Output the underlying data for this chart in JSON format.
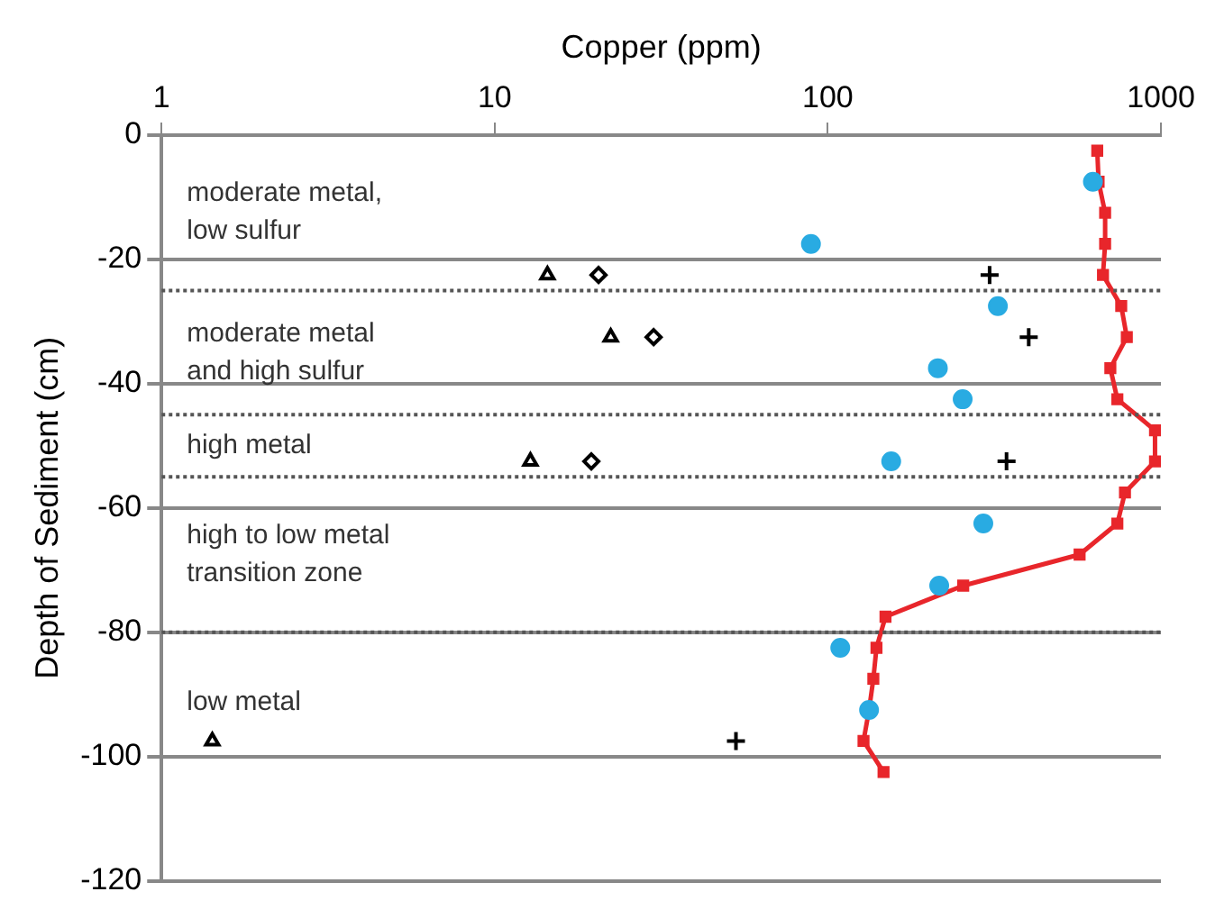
{
  "chart_data": {
    "type": "scatter",
    "xlabel": "Copper (ppm)",
    "ylabel": "Depth of Sediment (cm)",
    "log": "x",
    "xlim": [
      1,
      1000
    ],
    "xticks": [
      1,
      10,
      100,
      1000
    ],
    "ylim": [
      -120,
      0
    ],
    "yticks": [
      -120,
      -100,
      -80,
      -60,
      -40,
      -20,
      0
    ],
    "grid": "y",
    "legend": false,
    "series": [
      {
        "type": "line",
        "marker": "square",
        "color": "#e8262b",
        "x": [
          644,
          650,
          680,
          680,
          670,
          760,
          790,
          705,
          740,
          960,
          960,
          780,
          740,
          570,
          255,
          149,
          140,
          137,
          133,
          128,
          147
        ],
        "values": [
          -2.5,
          -7.5,
          -12.5,
          -17.5,
          -22.5,
          -27.5,
          -32.5,
          -37.5,
          -42.5,
          -47.5,
          -52.5,
          -57.5,
          -62.5,
          -67.5,
          -72.5,
          -77.5,
          -82.5,
          -87.5,
          -92.5,
          -97.5,
          -102.5
        ]
      },
      {
        "marker": "circle",
        "color": "#29abe2",
        "x": [
          625,
          89,
          324,
          214,
          254,
          155,
          293,
          216,
          109,
          133
        ],
        "values": [
          -7.5,
          -17.5,
          -27.5,
          -37.5,
          -42.5,
          -52.5,
          -62.5,
          -72.5,
          -82.5,
          -92.5
        ]
      },
      {
        "marker": "triangle",
        "color": "#000000",
        "x": [
          14.4,
          22.3,
          12.8,
          1.42
        ],
        "values": [
          -22.5,
          -32.5,
          -52.5,
          -97.5
        ]
      },
      {
        "marker": "diamond",
        "color": "#000000",
        "x": [
          20.5,
          30,
          19.5
        ],
        "values": [
          -22.5,
          -32.5,
          -52.5
        ]
      },
      {
        "marker": "cross",
        "color": "#000000",
        "x": [
          306,
          401,
          344,
          53
        ],
        "values": [
          -22.5,
          -32.5,
          -52.5,
          -97.5
        ]
      }
    ],
    "ref_lines": [
      {
        "axis": "y",
        "value": -25,
        "color": "#555555",
        "line_style": "dotted"
      },
      {
        "axis": "y",
        "value": -45,
        "color": "#555555",
        "line_style": "dotted"
      },
      {
        "axis": "y",
        "value": -55,
        "color": "#555555",
        "line_style": "dotted"
      },
      {
        "axis": "y",
        "value": -80,
        "color": "#555555",
        "line_style": "dotted"
      }
    ],
    "annotations": [
      "moderate metal,\nlow sulfur",
      "moderate metal\nand high sulfur",
      "high metal",
      "high to low metal\ntransition zone",
      "low metal"
    ]
  }
}
